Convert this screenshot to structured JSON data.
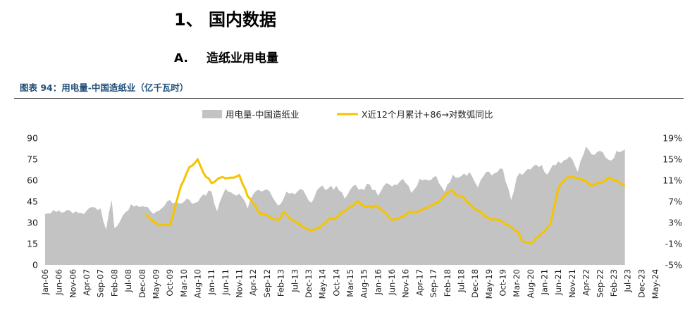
{
  "heading": {
    "section": "1、 国内数据",
    "sub_num": "A.",
    "sub_label": "造纸业用电量"
  },
  "figure_title": "图表 94：用电量-中国造纸业（亿千瓦时）",
  "colors": {
    "area": "#c3c3c3",
    "line": "#f5c400",
    "title": "#1f4e79"
  },
  "chart_data": {
    "type": "area",
    "legend": [
      "用电量-中国造纸业",
      "X近12个月累计+86→对数弧同比"
    ],
    "legend_position": "top-center",
    "grid": false,
    "left_axis": {
      "min": 0,
      "max": 90,
      "ticks": [
        "0",
        "15",
        "30",
        "45",
        "60",
        "75",
        "90"
      ]
    },
    "right_axis": {
      "min": -5,
      "max": 19,
      "ticks": [
        "-5%",
        "-1%",
        "3%",
        "7%",
        "11%",
        "15%",
        "19%"
      ]
    },
    "x_ticks": [
      "Jan-06",
      "Jun-06",
      "Nov-06",
      "Apr-07",
      "Sep-07",
      "Feb-08",
      "Jul-08",
      "Dec-08",
      "May-09",
      "Oct-09",
      "Mar-10",
      "Aug-10",
      "Jan-11",
      "Jun-11",
      "Nov-11",
      "Apr-12",
      "Sep-12",
      "Feb-13",
      "Jul-13",
      "Dec-13",
      "May-14",
      "Oct-14",
      "Mar-15",
      "Aug-15",
      "Jan-16",
      "Jun-16",
      "Nov-16",
      "Apr-17",
      "Sep-17",
      "Feb-18",
      "Jul-18",
      "Dec-18",
      "May-19",
      "Oct-19",
      "Mar-20",
      "Aug-20",
      "Jan-21",
      "Jun-21",
      "Nov-21",
      "Apr-22",
      "Sep-22",
      "Feb-23",
      "Jul-23",
      "Dec-23",
      "May-24"
    ],
    "area_series": {
      "name": "用电量-中国造纸业",
      "x_start": "2006-01",
      "x_end": "2023-06",
      "keypoints": [
        [
          "2006-01",
          36
        ],
        [
          "2006-04",
          39
        ],
        [
          "2006-07",
          37
        ],
        [
          "2006-09",
          39
        ],
        [
          "2006-12",
          38
        ],
        [
          "2007-03",
          36
        ],
        [
          "2007-06",
          41
        ],
        [
          "2007-09",
          40
        ],
        [
          "2007-11",
          25
        ],
        [
          "2008-01",
          46
        ],
        [
          "2008-02",
          26
        ],
        [
          "2008-05",
          35
        ],
        [
          "2008-08",
          43
        ],
        [
          "2008-11",
          41
        ],
        [
          "2009-02",
          41
        ],
        [
          "2009-04",
          36
        ],
        [
          "2009-07",
          40
        ],
        [
          "2009-10",
          46
        ],
        [
          "2010-01",
          44
        ],
        [
          "2010-04",
          47
        ],
        [
          "2010-07",
          44
        ],
        [
          "2010-10",
          50
        ],
        [
          "2011-01",
          52
        ],
        [
          "2011-03",
          38
        ],
        [
          "2011-06",
          54
        ],
        [
          "2011-09",
          50
        ],
        [
          "2011-12",
          48
        ],
        [
          "2012-02",
          40
        ],
        [
          "2012-04",
          50
        ],
        [
          "2012-07",
          52
        ],
        [
          "2012-10",
          52
        ],
        [
          "2013-01",
          42
        ],
        [
          "2013-04",
          52
        ],
        [
          "2013-07",
          50
        ],
        [
          "2013-10",
          53
        ],
        [
          "2014-01",
          44
        ],
        [
          "2014-04",
          55
        ],
        [
          "2014-07",
          54
        ],
        [
          "2014-10",
          56
        ],
        [
          "2015-01",
          47
        ],
        [
          "2015-04",
          56
        ],
        [
          "2015-07",
          54
        ],
        [
          "2015-10",
          57
        ],
        [
          "2016-01",
          49
        ],
        [
          "2016-04",
          58
        ],
        [
          "2016-07",
          57
        ],
        [
          "2016-10",
          61
        ],
        [
          "2017-01",
          51
        ],
        [
          "2017-04",
          61
        ],
        [
          "2017-07",
          60
        ],
        [
          "2017-10",
          63
        ],
        [
          "2018-01",
          52
        ],
        [
          "2018-04",
          64
        ],
        [
          "2018-07",
          63
        ],
        [
          "2018-10",
          66
        ],
        [
          "2019-01",
          55
        ],
        [
          "2019-04",
          66
        ],
        [
          "2019-07",
          65
        ],
        [
          "2019-10",
          68
        ],
        [
          "2020-01",
          46
        ],
        [
          "2020-03",
          62
        ],
        [
          "2020-06",
          66
        ],
        [
          "2020-09",
          70
        ],
        [
          "2020-12",
          71
        ],
        [
          "2021-02",
          64
        ],
        [
          "2021-04",
          71
        ],
        [
          "2021-07",
          72
        ],
        [
          "2021-10",
          77
        ],
        [
          "2022-01",
          66
        ],
        [
          "2022-04",
          84
        ],
        [
          "2022-07",
          78
        ],
        [
          "2022-10",
          80
        ],
        [
          "2023-01",
          74
        ],
        [
          "2023-03",
          81
        ],
        [
          "2023-06",
          82
        ]
      ]
    },
    "line_series": {
      "name": "X近12个月累计+86→对数弧同比",
      "axis": "right",
      "x_start": "2009-01",
      "x_end": "2023-06",
      "keypoints": [
        [
          "2009-01",
          4.5
        ],
        [
          "2009-06",
          2.5
        ],
        [
          "2009-10",
          2.5
        ],
        [
          "2010-02",
          10.0
        ],
        [
          "2010-05",
          13.5
        ],
        [
          "2010-08",
          15.0
        ],
        [
          "2010-10",
          12.5
        ],
        [
          "2011-01",
          10.5
        ],
        [
          "2011-04",
          11.5
        ],
        [
          "2011-09",
          11.5
        ],
        [
          "2011-11",
          12.0
        ],
        [
          "2012-02",
          8.0
        ],
        [
          "2012-06",
          5.0
        ],
        [
          "2012-10",
          4.0
        ],
        [
          "2013-01",
          3.5
        ],
        [
          "2013-03",
          5.0
        ],
        [
          "2013-06",
          3.5
        ],
        [
          "2013-09",
          2.5
        ],
        [
          "2014-01",
          1.5
        ],
        [
          "2014-04",
          2.0
        ],
        [
          "2014-07",
          3.5
        ],
        [
          "2014-10",
          4.0
        ],
        [
          "2015-03",
          6.0
        ],
        [
          "2015-06",
          7.0
        ],
        [
          "2015-09",
          6.0
        ],
        [
          "2016-01",
          6.0
        ],
        [
          "2016-06",
          3.5
        ],
        [
          "2016-09",
          4.0
        ],
        [
          "2017-01",
          5.0
        ],
        [
          "2017-05",
          5.5
        ],
        [
          "2017-09",
          6.5
        ],
        [
          "2017-12",
          7.5
        ],
        [
          "2018-03",
          9.0
        ],
        [
          "2018-07",
          8.0
        ],
        [
          "2018-09",
          7.0
        ],
        [
          "2018-12",
          5.5
        ],
        [
          "2019-03",
          4.5
        ],
        [
          "2019-06",
          3.5
        ],
        [
          "2019-09",
          3.5
        ],
        [
          "2019-12",
          2.5
        ],
        [
          "2020-03",
          1.5
        ],
        [
          "2020-05",
          -0.5
        ],
        [
          "2020-08",
          -1.0
        ],
        [
          "2020-12",
          1.0
        ],
        [
          "2021-03",
          2.5
        ],
        [
          "2021-06",
          9.5
        ],
        [
          "2021-09",
          11.5
        ],
        [
          "2021-12",
          11.5
        ],
        [
          "2022-03",
          11.0
        ],
        [
          "2022-06",
          10.0
        ],
        [
          "2022-09",
          10.5
        ],
        [
          "2022-12",
          11.5
        ],
        [
          "2023-03",
          11.0
        ],
        [
          "2023-06",
          10.0
        ]
      ]
    }
  }
}
